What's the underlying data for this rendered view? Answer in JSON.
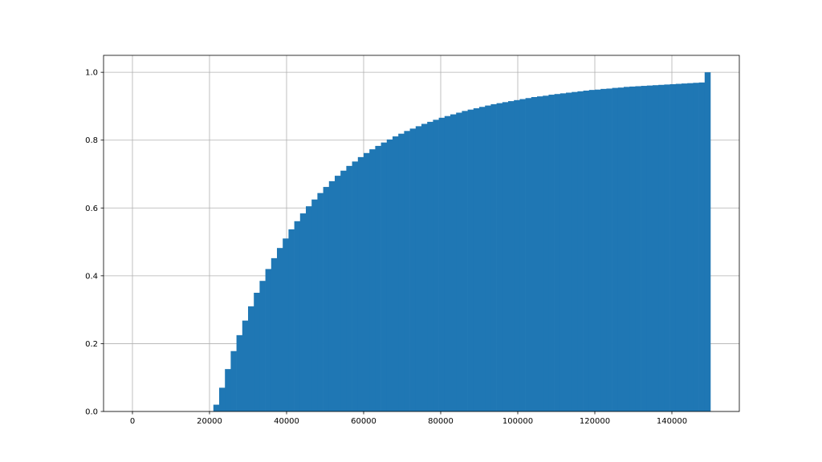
{
  "chart_data": {
    "type": "histogram",
    "color": "#1f77b4",
    "grid": true,
    "bins": [
      0,
      1500,
      3000,
      4500,
      6000,
      7500,
      9000,
      10500,
      12000,
      13500,
      15000,
      16500,
      18000,
      19500,
      21000,
      22500,
      24000,
      25500,
      27000,
      28500,
      30000,
      31500,
      33000,
      34500,
      36000,
      37500,
      39000,
      40500,
      42000,
      43500,
      45000,
      46500,
      48000,
      49500,
      51000,
      52500,
      54000,
      55500,
      57000,
      58500,
      60000,
      61500,
      63000,
      64500,
      66000,
      67500,
      69000,
      70500,
      72000,
      73500,
      75000,
      76500,
      78000,
      79500,
      81000,
      82500,
      84000,
      85500,
      87000,
      88500,
      90000,
      91500,
      93000,
      94500,
      96000,
      97500,
      99000,
      100500,
      102000,
      103500,
      105000,
      106500,
      108000,
      109500,
      111000,
      112500,
      114000,
      115500,
      117000,
      118500,
      120000,
      121500,
      123000,
      124500,
      126000,
      127500,
      129000,
      130500,
      132000,
      133500,
      135000,
      136500,
      138000,
      139500,
      141000,
      142500,
      144000,
      145500,
      147000,
      148500,
      150000
    ],
    "values": [
      0,
      0,
      0,
      0,
      0,
      0,
      0,
      0,
      0,
      0,
      0,
      0,
      0,
      0,
      0.02,
      0.07,
      0.125,
      0.178,
      0.225,
      0.268,
      0.31,
      0.35,
      0.385,
      0.42,
      0.452,
      0.482,
      0.51,
      0.537,
      0.561,
      0.584,
      0.605,
      0.625,
      0.644,
      0.662,
      0.679,
      0.695,
      0.71,
      0.724,
      0.737,
      0.75,
      0.762,
      0.773,
      0.783,
      0.793,
      0.802,
      0.811,
      0.819,
      0.827,
      0.834,
      0.841,
      0.848,
      0.854,
      0.86,
      0.866,
      0.871,
      0.876,
      0.881,
      0.886,
      0.89,
      0.894,
      0.898,
      0.902,
      0.906,
      0.909,
      0.912,
      0.915,
      0.918,
      0.921,
      0.924,
      0.927,
      0.929,
      0.931,
      0.934,
      0.936,
      0.938,
      0.94,
      0.942,
      0.944,
      0.946,
      0.948,
      0.949,
      0.951,
      0.952,
      0.954,
      0.955,
      0.957,
      0.958,
      0.959,
      0.96,
      0.961,
      0.962,
      0.963,
      0.964,
      0.965,
      0.966,
      0.967,
      0.968,
      0.969,
      0.97,
      1.0
    ],
    "xlim": [
      -7500,
      157500
    ],
    "xticks": [
      0,
      20000,
      40000,
      60000,
      80000,
      100000,
      120000,
      140000
    ],
    "ylim": [
      0,
      1.05
    ],
    "yticks": [
      {
        "value": 0,
        "label": "0.0"
      },
      {
        "value": 0.2,
        "label": "0.2"
      },
      {
        "value": 0.4,
        "label": "0.4"
      },
      {
        "value": 0.6,
        "label": "0.6"
      },
      {
        "value": 0.8,
        "label": "0.8"
      },
      {
        "value": 1.0,
        "label": "1.0"
      }
    ]
  }
}
